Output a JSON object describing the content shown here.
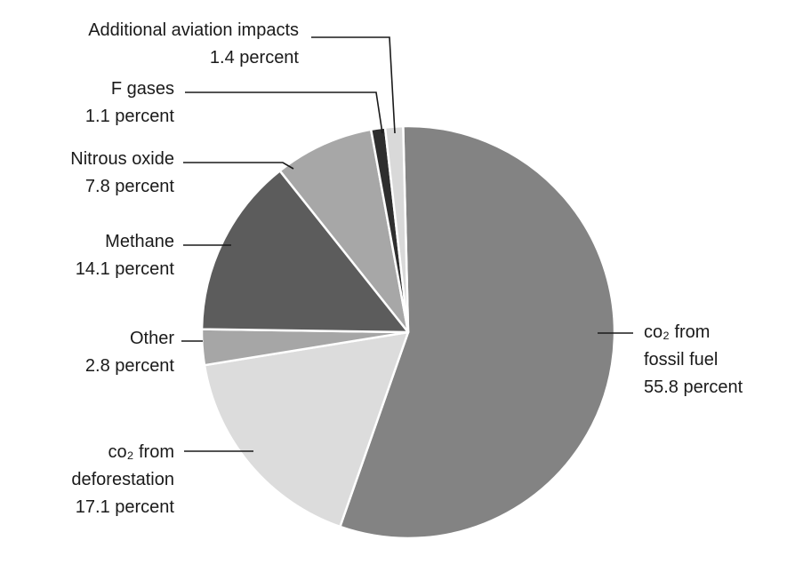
{
  "chart_data": {
    "type": "pie",
    "title": "",
    "slices": [
      {
        "label_lines": [
          "co₂ from",
          "fossil fuel"
        ],
        "value": 55.8,
        "value_label": "55.8 percent",
        "color": "#838383"
      },
      {
        "label_lines": [
          "co₂ from",
          "deforestation"
        ],
        "value": 17.1,
        "value_label": "17.1 percent",
        "color": "#dcdcdc"
      },
      {
        "label_lines": [
          "Other"
        ],
        "value": 2.8,
        "value_label": "2.8 percent",
        "color": "#a6a6a6"
      },
      {
        "label_lines": [
          "Methane"
        ],
        "value": 14.1,
        "value_label": "14.1 percent",
        "color": "#5c5c5c"
      },
      {
        "label_lines": [
          "Nitrous oxide"
        ],
        "value": 7.8,
        "value_label": "7.8 percent",
        "color": "#a7a7a7"
      },
      {
        "label_lines": [
          "F gases"
        ],
        "value": 1.1,
        "value_label": "1.1 percent",
        "color": "#2e2e2e"
      },
      {
        "label_lines": [
          "Additional aviation impacts"
        ],
        "value": 1.4,
        "value_label": "1.4 percent",
        "color": "#d9d9d9"
      }
    ]
  }
}
